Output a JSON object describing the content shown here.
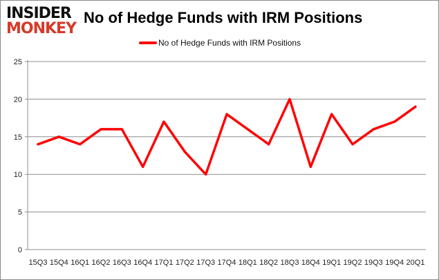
{
  "logo": {
    "line1": "INSIDER",
    "line2": "MONKEY"
  },
  "chart_data": {
    "type": "line",
    "title": "No of Hedge Funds with IRM Positions",
    "xlabel": "",
    "ylabel": "",
    "categories": [
      "15Q3",
      "15Q4",
      "16Q1",
      "16Q2",
      "16Q3",
      "16Q4",
      "17Q1",
      "17Q2",
      "17Q3",
      "17Q4",
      "18Q1",
      "18Q2",
      "18Q3",
      "18Q4",
      "19Q1",
      "19Q2",
      "19Q3",
      "19Q4",
      "20Q1"
    ],
    "series": [
      {
        "name": "No of Hedge Funds with IRM Positions",
        "color": "#ff0000",
        "values": [
          14,
          15,
          14,
          16,
          16,
          11,
          17,
          13,
          10,
          18,
          16,
          14,
          20,
          11,
          18,
          14,
          16,
          17,
          19
        ]
      }
    ],
    "ylim": [
      0,
      25
    ],
    "yticks": [
      0,
      5,
      10,
      15,
      20,
      25
    ],
    "grid": true,
    "legend": "top"
  }
}
